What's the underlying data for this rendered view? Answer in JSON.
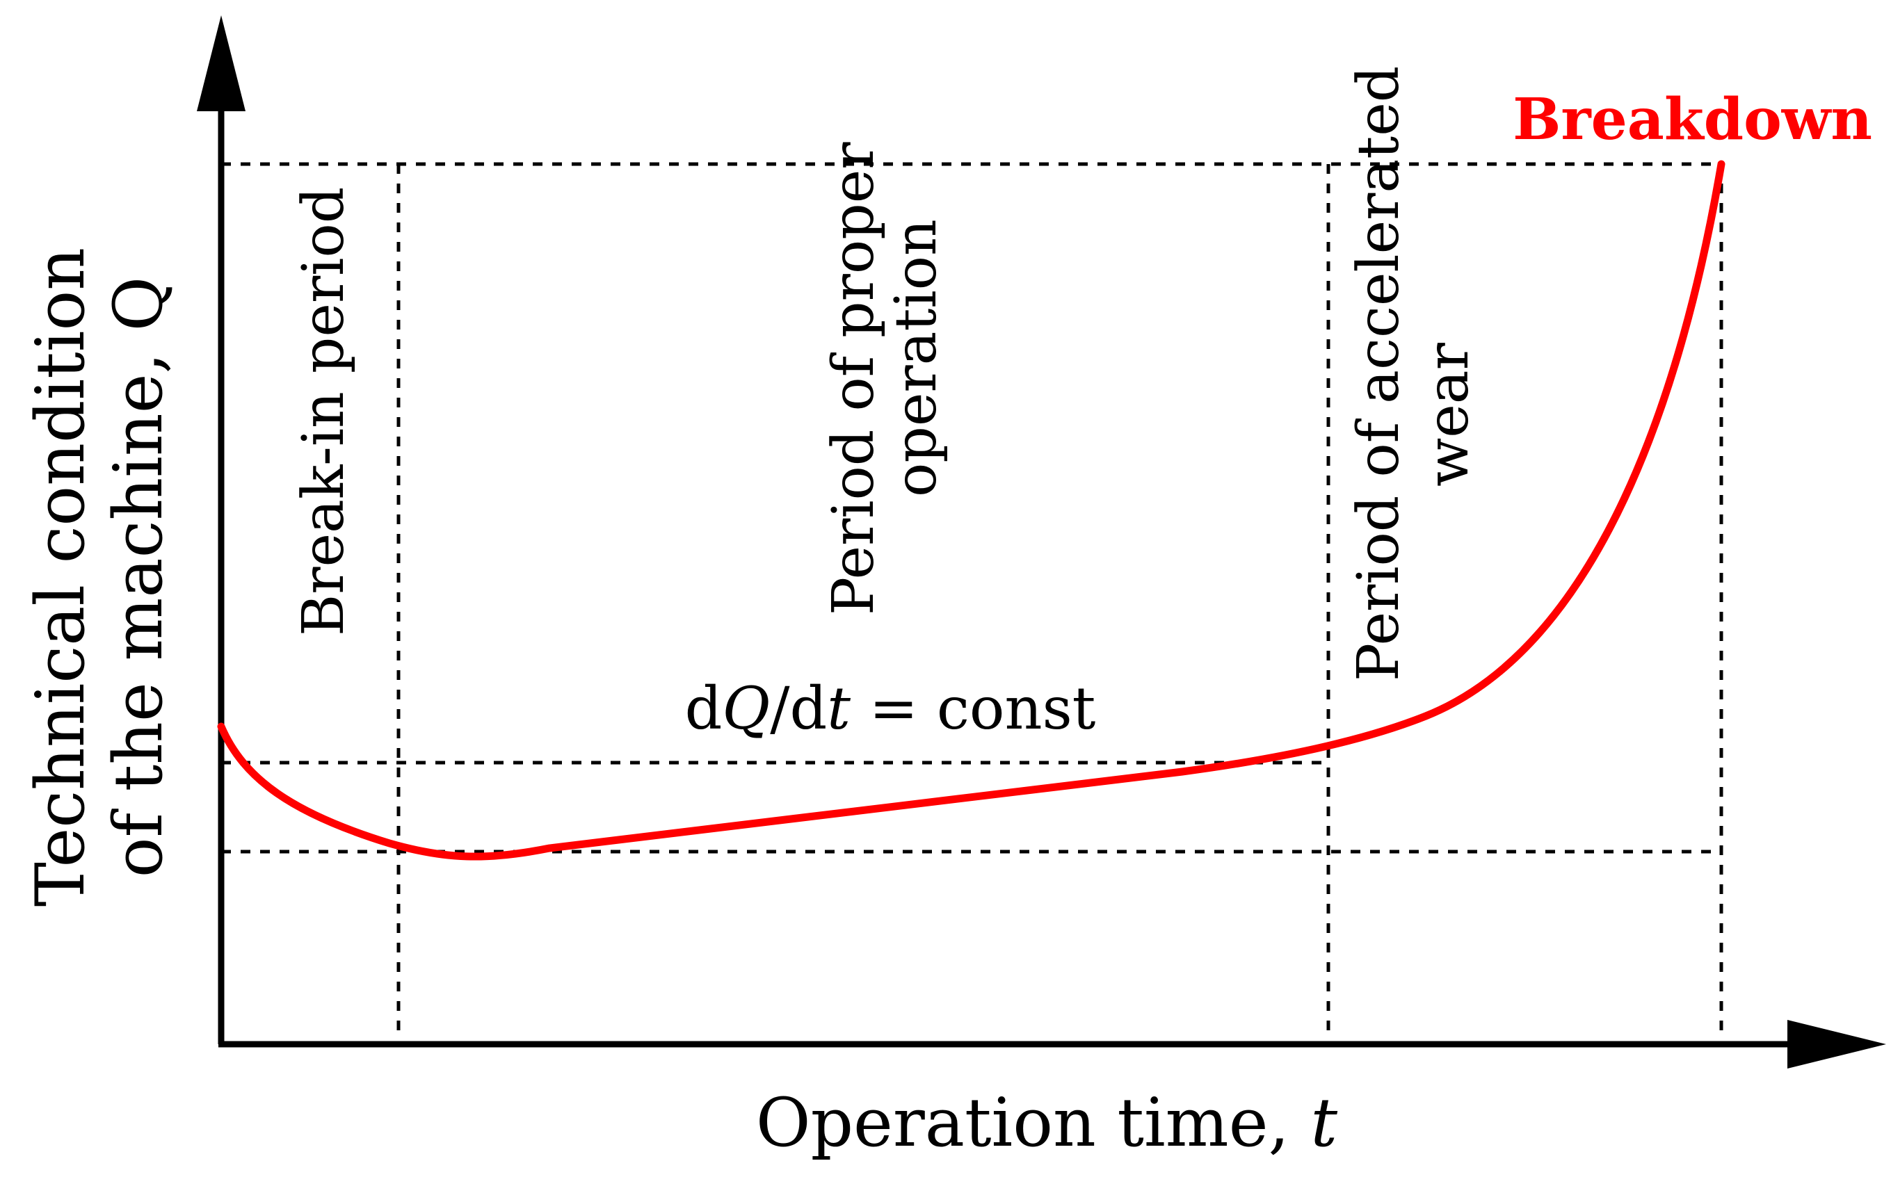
{
  "diagram": {
    "y_axis_label_line1": "Technical condition",
    "y_axis_label_line2_prefix": "of the machine, ",
    "y_axis_label_line2_var": "Q",
    "x_axis_label_prefix": "Operation time, ",
    "x_axis_label_var": "t",
    "breakdown_label": "Breakdown",
    "periods": [
      {
        "label": "Break-in period"
      },
      {
        "label_line1": "Period of proper",
        "label_line2": "operation"
      },
      {
        "label_line1": "Period of accelerated",
        "label_line2": "wear"
      }
    ],
    "equation": {
      "d1": "d",
      "Q": "Q",
      "slash_d": "/d",
      "t": "t",
      "rest": " = const"
    },
    "colors": {
      "curve": "#ff0000",
      "axes": "#000000",
      "guides": "#000000",
      "breakdown_text": "#ff0000"
    }
  }
}
